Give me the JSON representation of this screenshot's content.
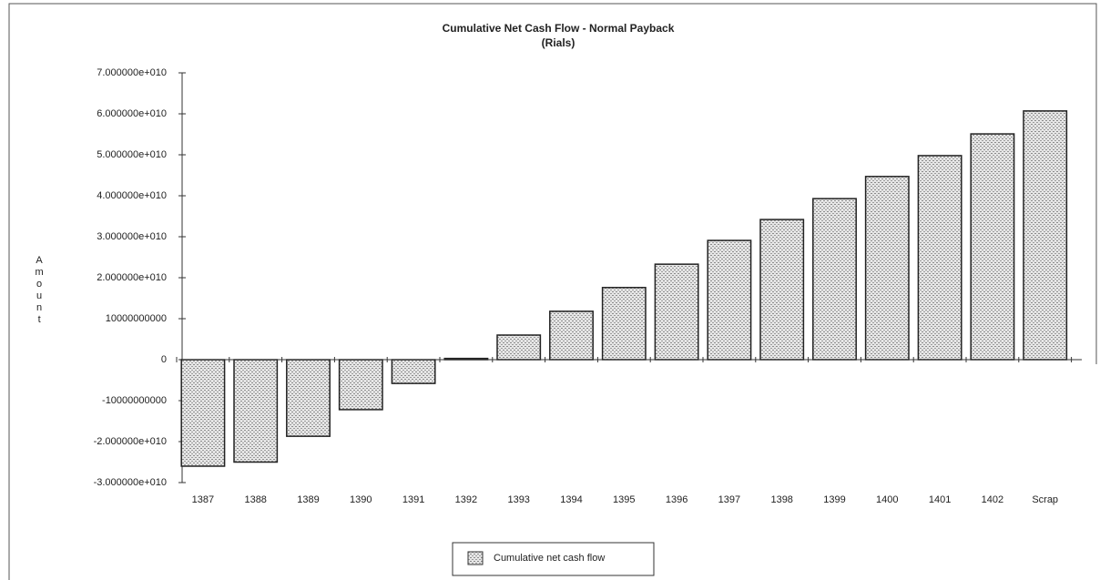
{
  "chart_data": {
    "type": "bar",
    "title": "Cumulative Net Cash Flow - Normal Payback",
    "subtitle": "(Rials)",
    "y_label": "Amount",
    "categories": [
      "1387",
      "1388",
      "1389",
      "1390",
      "1391",
      "1392",
      "1393",
      "1394",
      "1395",
      "1396",
      "1397",
      "1398",
      "1399",
      "1400",
      "1401",
      "1402",
      "Scrap"
    ],
    "series": [
      {
        "name": "Cumulative net cash flow",
        "color": "#b8b8b8",
        "values": [
          -26000000000,
          -25000000000,
          -18700000000,
          -12200000000,
          -5800000000,
          300000000,
          6000000000,
          11800000000,
          17600000000,
          23300000000,
          29100000000,
          34200000000,
          39300000000,
          44700000000,
          49800000000,
          55100000000,
          60700000000
        ]
      }
    ],
    "ylim": [
      -30000000000,
      70000000000
    ],
    "yticks": [
      {
        "value": -30000000000,
        "label": "-3.000000e+010"
      },
      {
        "value": -20000000000,
        "label": "-2.000000e+010"
      },
      -10000000000,
      0,
      10000000000,
      {
        "value": 20000000000,
        "label": "2.000000e+010"
      },
      {
        "value": 30000000000,
        "label": "3.000000e+010"
      },
      {
        "value": 40000000000,
        "label": "4.000000e+010"
      },
      {
        "value": 50000000000,
        "label": "5.000000e+010"
      },
      {
        "value": 60000000000,
        "label": "6.000000e+010"
      },
      {
        "value": 70000000000,
        "label": "7.000000e+010"
      }
    ],
    "grid": false,
    "legend": "bottom"
  }
}
